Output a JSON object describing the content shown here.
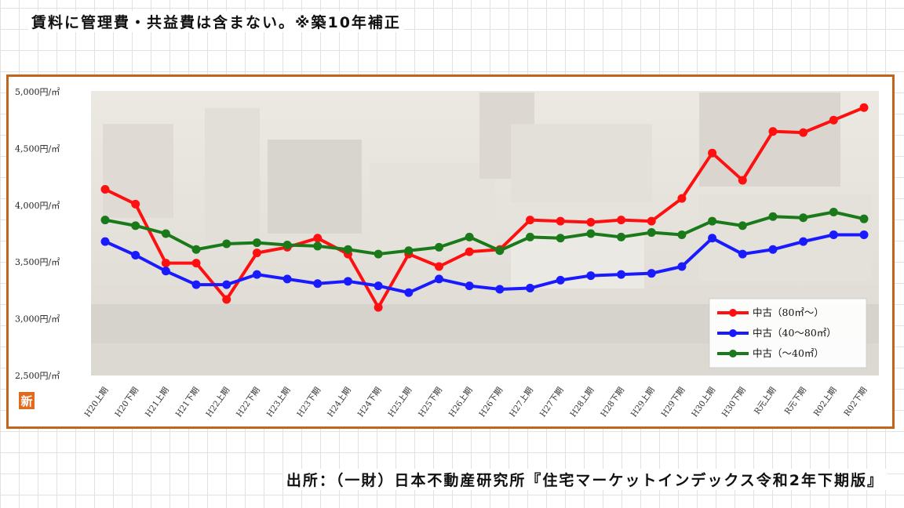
{
  "header": {
    "note": "賃料に管理費・共益費は含まない。※築10年補正"
  },
  "footer": {
    "source": "出所：（一財）日本不動産研究所『住宅マーケットインデックス令和2年下期版』"
  },
  "badge": {
    "label": "新",
    "color": "#e06a1e"
  },
  "chart_data": {
    "type": "line",
    "title": "",
    "xlabel": "",
    "ylabel": "",
    "categories": [
      "H20上期",
      "H20下期",
      "H21上期",
      "H21下期",
      "H22上期",
      "H22下期",
      "H23上期",
      "H23下期",
      "H24上期",
      "H24下期",
      "H25上期",
      "H25下期",
      "H26上期",
      "H26下期",
      "H27上期",
      "H27下期",
      "H28上期",
      "H28下期",
      "H29上期",
      "H29下期",
      "H30上期",
      "H30下期",
      "R元上期",
      "R元下期",
      "R02上期",
      "R02下期"
    ],
    "yticks": [
      "5,000円/㎡",
      "4,500円/㎡",
      "4,000円/㎡",
      "3,500円/㎡",
      "3,000円/㎡",
      "2,500円/㎡"
    ],
    "ylim": [
      2500,
      5000
    ],
    "grid": false,
    "legend_position": "bottom-right",
    "series": [
      {
        "name": "中古（80㎡～）",
        "color": "#ff1010",
        "values": [
          4140,
          4010,
          3490,
          3490,
          3170,
          3580,
          3630,
          3710,
          3570,
          3100,
          3570,
          3460,
          3590,
          3610,
          3870,
          3860,
          3850,
          3870,
          3860,
          4060,
          4460,
          4220,
          4650,
          4640,
          4750,
          4860
        ]
      },
      {
        "name": "中古（40～80㎡）",
        "color": "#1a1aff",
        "values": [
          3680,
          3560,
          3420,
          3300,
          3300,
          3390,
          3350,
          3310,
          3330,
          3290,
          3230,
          3350,
          3290,
          3260,
          3270,
          3340,
          3380,
          3390,
          3400,
          3460,
          3710,
          3570,
          3610,
          3680,
          3740,
          3740
        ]
      },
      {
        "name": "中古（～40㎡）",
        "color": "#1a7a1a",
        "values": [
          3870,
          3820,
          3750,
          3610,
          3660,
          3670,
          3650,
          3640,
          3610,
          3570,
          3600,
          3630,
          3720,
          3600,
          3720,
          3710,
          3750,
          3720,
          3760,
          3740,
          3860,
          3820,
          3900,
          3890,
          3940,
          3880
        ]
      }
    ]
  }
}
